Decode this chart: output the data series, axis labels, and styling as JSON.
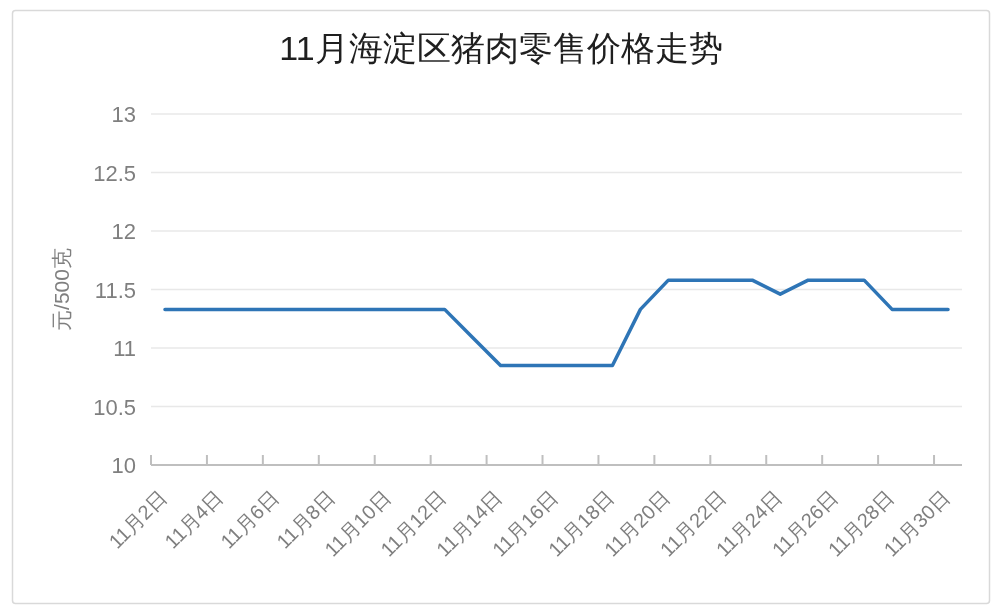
{
  "chart_data": {
    "type": "line",
    "title": "11月海淀区猪肉零售价格走势",
    "ylabel": "元/500克",
    "categories": [
      "11月2日",
      null,
      "11月4日",
      null,
      "11月6日",
      null,
      "11月8日",
      null,
      "11月10日",
      null,
      "11月12日",
      null,
      "11月14日",
      null,
      "11月16日",
      null,
      "11月18日",
      null,
      "11月20日",
      null,
      "11月22日",
      null,
      "11月24日",
      null,
      "11月26日",
      null,
      "11月28日",
      null,
      "11月30日"
    ],
    "series": [
      {
        "color": "#2e75b6",
        "values": [
          11.33,
          11.33,
          11.33,
          11.33,
          11.33,
          11.33,
          11.33,
          11.33,
          11.33,
          11.33,
          11.33,
          11.09,
          10.85,
          10.85,
          10.85,
          10.85,
          10.85,
          11.33,
          11.58,
          11.58,
          11.58,
          11.58,
          11.46,
          11.58,
          11.58,
          11.58,
          11.33,
          11.33,
          11.33
        ]
      }
    ],
    "ylim": [
      10,
      13
    ],
    "yticks": [
      10,
      10.5,
      11,
      11.5,
      12,
      12.5,
      13
    ],
    "grid": "y",
    "marker": "none",
    "line_style": "solid"
  }
}
